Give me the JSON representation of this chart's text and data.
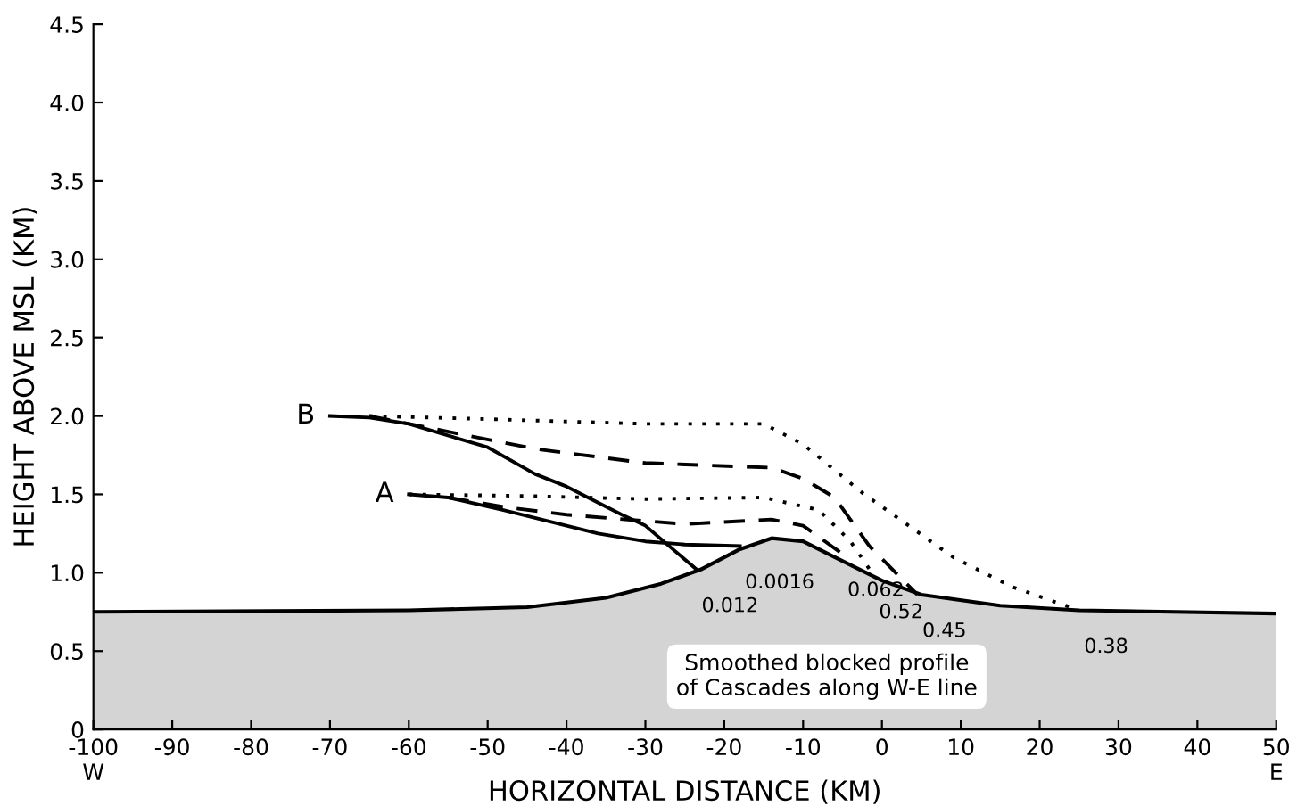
{
  "chart_data": {
    "type": "line",
    "xlabel": "HORIZONTAL DISTANCE (KM)",
    "ylabel": "HEIGHT ABOVE MSL (KM)",
    "xlim": [
      -100,
      50
    ],
    "ylim": [
      0,
      4.5
    ],
    "xticks": [
      {
        "value": -100,
        "label": "-100\nW"
      },
      -90,
      -80,
      -70,
      -60,
      -50,
      -40,
      -30,
      -20,
      -10,
      0,
      10,
      20,
      30,
      40,
      {
        "value": 50,
        "label": "50\nE"
      }
    ],
    "yticks": [
      0,
      0.5,
      {
        "value": 1,
        "label": "1.0"
      },
      1.5,
      {
        "value": 2,
        "label": "2.0"
      },
      2.5,
      {
        "value": 3,
        "label": "3.0"
      },
      3.5,
      {
        "value": 4,
        "label": "4.0"
      },
      4.5
    ],
    "grid": false,
    "legend": false,
    "marker": "none",
    "series": [
      {
        "type": "area",
        "color": "#d4d4d4",
        "x": [
          -100,
          -60,
          -45,
          -35,
          -28,
          -23,
          -18,
          -14,
          -10,
          -6,
          0,
          5,
          15,
          25,
          50
        ],
        "values": [
          0.75,
          0.76,
          0.78,
          0.84,
          0.93,
          1.02,
          1.15,
          1.22,
          1.2,
          1.1,
          0.95,
          0.86,
          0.79,
          0.76,
          0.74
        ]
      },
      {
        "color": "#000000",
        "line_style": "solid",
        "x": [
          -70,
          -65,
          -60,
          -50,
          -44,
          -40,
          -33,
          -30,
          -23.5
        ],
        "values": [
          2.0,
          1.99,
          1.95,
          1.8,
          1.63,
          1.55,
          1.37,
          1.3,
          1.02
        ]
      },
      {
        "color": "#000000",
        "line_style": "dashed",
        "x": [
          -65,
          -55,
          -44,
          -30,
          -14,
          -10,
          -6,
          -1.6,
          4.5
        ],
        "values": [
          2.0,
          1.9,
          1.79,
          1.7,
          1.67,
          1.6,
          1.48,
          1.17,
          0.86
        ]
      },
      {
        "color": "#000000",
        "line_style": "dotted",
        "x": [
          -65,
          -50,
          -30,
          -15,
          -10,
          -2.5,
          9,
          16.5,
          25
        ],
        "values": [
          2.0,
          1.98,
          1.95,
          1.95,
          1.82,
          1.51,
          1.1,
          0.91,
          0.76
        ]
      },
      {
        "color": "#000000",
        "line_style": "solid",
        "x": [
          -60,
          -55,
          -48,
          -36,
          -30,
          -25,
          -18
        ],
        "values": [
          1.5,
          1.48,
          1.4,
          1.25,
          1.2,
          1.18,
          1.17
        ]
      },
      {
        "color": "#000000",
        "line_style": "dashed",
        "x": [
          -55,
          -48,
          -40,
          -25,
          -14,
          -10,
          -5
        ],
        "values": [
          1.48,
          1.42,
          1.37,
          1.31,
          1.34,
          1.3,
          1.12
        ]
      },
      {
        "color": "#000000",
        "line_style": "dotted",
        "x": [
          -60,
          -45,
          -30,
          -15,
          -8,
          -4,
          -1
        ],
        "values": [
          1.5,
          1.49,
          1.47,
          1.48,
          1.4,
          1.2,
          0.98
        ]
      }
    ],
    "annotations": [
      {
        "text": "B",
        "x": -70,
        "y": 2.0
      },
      {
        "text": "A",
        "x": -60,
        "y": 1.5
      },
      {
        "text": "0.012",
        "x": -23.5,
        "y": 1.02
      },
      {
        "text": "0.0016",
        "x": -18,
        "y": 1.17
      },
      {
        "text": "0.062",
        "x": -5,
        "y": 1.12
      },
      {
        "text": "0.52",
        "x": -1,
        "y": 0.98
      },
      {
        "text": "0.45",
        "x": 4.5,
        "y": 0.86
      },
      {
        "text": "0.38",
        "x": 25,
        "y": 0.76
      },
      "Smoothed blocked profile\nof Cascades along W-E line"
    ]
  }
}
